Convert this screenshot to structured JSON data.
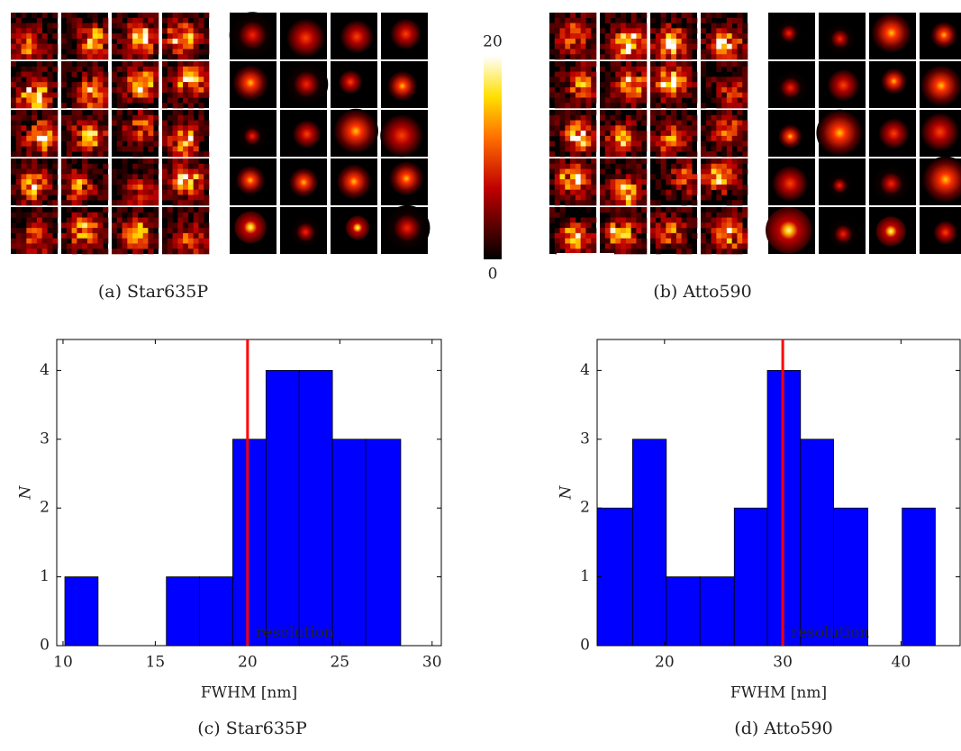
{
  "panels": [
    {
      "caption": "(a) Star635P"
    },
    {
      "caption": "(b) Atto590"
    }
  ],
  "colorbar": {
    "lim": [
      0,
      20
    ],
    "ticks": [
      0,
      20
    ]
  },
  "chart_data": [
    {
      "type": "histogram",
      "caption": "(c) Star635P",
      "xlabel": "FWHM [nm]",
      "ylabel": "N",
      "bins": [
        10.1,
        11.9,
        13.7,
        15.6,
        17.4,
        19.2,
        21.0,
        22.8,
        24.6,
        26.4,
        28.3
      ],
      "values": [
        1,
        0,
        0,
        1,
        1,
        3,
        4,
        4,
        3,
        3
      ],
      "color": "#0000ff",
      "xlim": [
        9.66,
        30.5
      ],
      "ylim": [
        0,
        4.45
      ],
      "xticks": [
        10,
        15,
        20,
        25,
        30
      ],
      "yticks": [
        0,
        1,
        2,
        3,
        4
      ],
      "annotation": {
        "text": "resolution",
        "x": 20,
        "color": "#ff0000"
      }
    },
    {
      "type": "histogram",
      "caption": "(d) Atto590",
      "xlabel": "FWHM [nm]",
      "ylabel": "N",
      "bins": [
        14.3,
        17.3,
        20.15,
        23.0,
        25.9,
        28.7,
        31.5,
        34.3,
        37.2,
        40.1,
        42.9
      ],
      "values": [
        2,
        3,
        1,
        1,
        2,
        4,
        3,
        2,
        0,
        2
      ],
      "color": "#0000ff",
      "xlim": [
        14.3,
        45.0
      ],
      "ylim": [
        0,
        4.45
      ],
      "xticks": [
        20,
        30,
        40
      ],
      "yticks": [
        0,
        1,
        2,
        3,
        4
      ],
      "annotation": {
        "text": "resolution",
        "x": 30,
        "color": "#ff0000"
      }
    }
  ]
}
